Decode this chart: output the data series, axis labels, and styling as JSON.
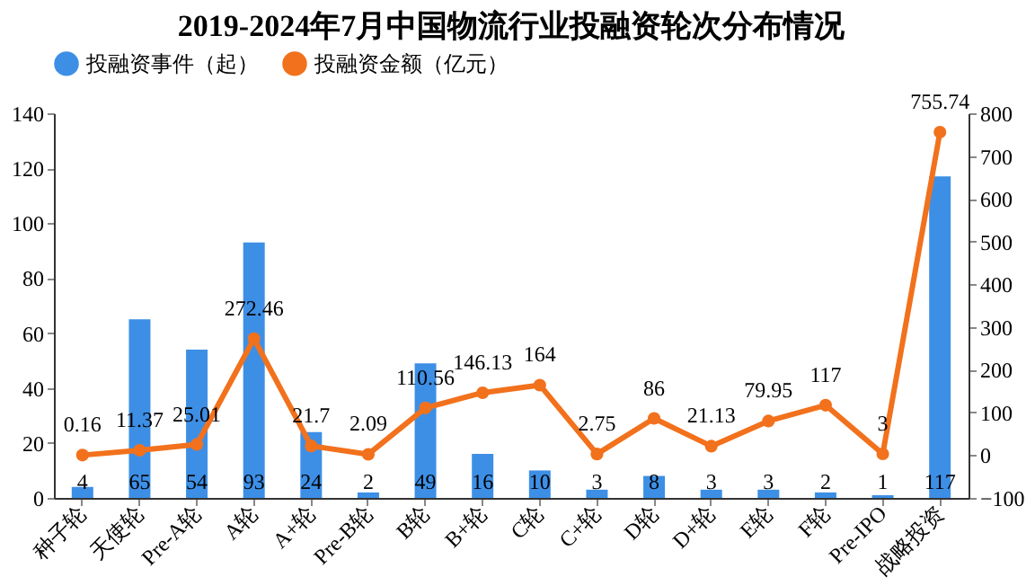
{
  "chart_data": {
    "type": "bar",
    "title": "2019-2024年7月中国物流行业投融资轮次分布情况",
    "categories": [
      "种子轮",
      "天使轮",
      "Pre-A轮",
      "A轮",
      "A+轮",
      "Pre-B轮",
      "B轮",
      "B+轮",
      "C轮",
      "C+轮",
      "D轮",
      "D+轮",
      "E轮",
      "F轮",
      "Pre-IPO",
      "战略投资"
    ],
    "series": [
      {
        "name": "投融资事件（起）",
        "color": "#3d8fe6",
        "values": [
          4,
          65,
          54,
          93,
          24,
          2,
          49,
          16,
          10,
          3,
          8,
          3,
          3,
          2,
          1,
          117
        ]
      },
      {
        "name": "投融资金额（亿元）",
        "type": "line",
        "axis": "y2",
        "color": "#f2711c",
        "values": [
          0.16,
          11.37,
          25.01,
          272.46,
          21.7,
          2.09,
          110.56,
          146.13,
          164,
          2.75,
          86,
          21.13,
          79.95,
          117,
          3,
          755.74
        ]
      }
    ],
    "ylim": [
      0,
      140
    ],
    "yticks": [
      0,
      20,
      40,
      60,
      80,
      100,
      120,
      140
    ],
    "y2lim": [
      -100,
      800
    ],
    "y2ticks": [
      -100,
      0,
      100,
      200,
      300,
      400,
      500,
      600,
      700,
      800
    ],
    "data_labels": true,
    "legend": "top",
    "grid": false,
    "marker": "circle",
    "line_style": "solid"
  }
}
